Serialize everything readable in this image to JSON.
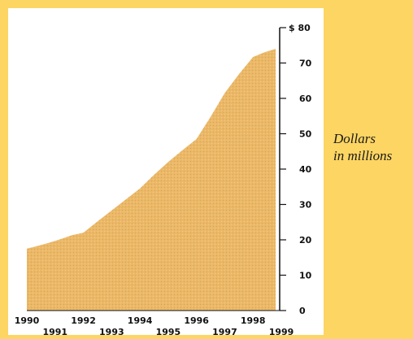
{
  "chart_data": {
    "type": "area",
    "unit_label_lines": [
      "Dollars",
      "in millions"
    ],
    "x_labels_top": [
      "1990",
      "1992",
      "1994",
      "1996",
      "1998"
    ],
    "x_labels_bottom": [
      "1991",
      "1993",
      "1995",
      "1997",
      "1999"
    ],
    "x": [
      1990,
      1990.4,
      1990.8,
      1991.2,
      1991.6,
      1992.0,
      1992.5,
      1993.0,
      1993.5,
      1994.0,
      1994.5,
      1995.0,
      1995.5,
      1996.0,
      1996.5,
      1997.0,
      1997.5,
      1998.0,
      1998.4,
      1998.8
    ],
    "values": [
      17.5,
      18.3,
      19.2,
      20.2,
      21.3,
      22,
      25.2,
      28.3,
      31.4,
      34.5,
      38.4,
      42,
      45.3,
      48.5,
      54.8,
      61.5,
      66.8,
      71.7,
      73,
      74
    ],
    "xlim": [
      1990,
      1999
    ],
    "ylim": [
      0,
      80
    ],
    "y_ticks": [
      0,
      10,
      20,
      30,
      40,
      50,
      60,
      70,
      80
    ],
    "y_tick_labels": [
      "0",
      "10",
      "20",
      "30",
      "40",
      "50",
      "60",
      "70",
      "$ 80"
    ],
    "colors": {
      "fill": "#EBB868",
      "background": "#FDD562",
      "panel": "#FFFFFF"
    }
  }
}
